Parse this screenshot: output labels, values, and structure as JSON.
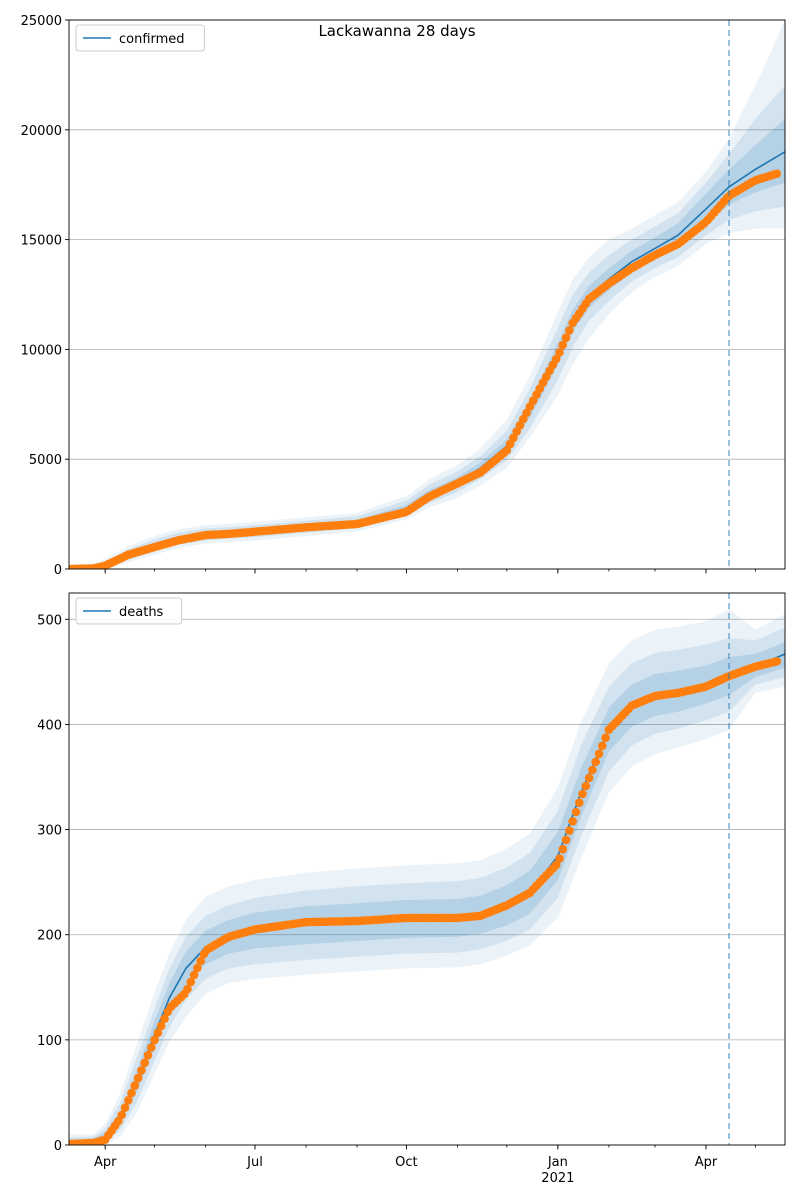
{
  "title": "Lackawanna 28 days",
  "colors": {
    "model_line": "#1f77b4",
    "observed": "#ff7f0e",
    "band": "#1f77b4",
    "grid": "#b0b0b0"
  },
  "chart_data": [
    {
      "type": "line",
      "legend": "confirmed",
      "legend_position": "upper-left",
      "ylim": [
        0,
        25000
      ],
      "yticks": [
        0,
        5000,
        10000,
        15000,
        20000,
        25000
      ],
      "grid": "horizontal",
      "x_domain": [
        "2020-03-10",
        "2021-05-19"
      ],
      "xticks": [
        {
          "date": "2020-04-01",
          "label": "Apr"
        },
        {
          "date": "2020-07-01",
          "label": "Jul"
        },
        {
          "date": "2020-10-01",
          "label": "Oct"
        },
        {
          "date": "2021-01-01",
          "label": "Jan",
          "sublabel": "2021"
        },
        {
          "date": "2021-04-01",
          "label": "Apr"
        }
      ],
      "forecast_start": "2021-04-15",
      "model": {
        "x": [
          "2020-03-10",
          "2020-03-25",
          "2020-04-01",
          "2020-04-15",
          "2020-05-01",
          "2020-05-15",
          "2020-06-01",
          "2020-06-15",
          "2020-07-01",
          "2020-08-01",
          "2020-09-01",
          "2020-09-20",
          "2020-10-01",
          "2020-10-15",
          "2020-11-01",
          "2020-11-15",
          "2020-12-01",
          "2020-12-15",
          "2021-01-01",
          "2021-01-10",
          "2021-01-20",
          "2021-02-01",
          "2021-02-15",
          "2021-03-01",
          "2021-03-15",
          "2021-04-01",
          "2021-04-15",
          "2021-05-01",
          "2021-05-19"
        ],
        "y": [
          0,
          20,
          120,
          650,
          1050,
          1350,
          1550,
          1620,
          1700,
          1900,
          2100,
          2500,
          2750,
          3400,
          3950,
          4600,
          5600,
          7300,
          9800,
          11300,
          12400,
          13200,
          14000,
          14600,
          15200,
          16400,
          17400,
          18200,
          19000
        ],
        "bands": [
          {
            "lower": [
              0,
              0,
              50,
              520,
              900,
              1200,
              1400,
              1480,
              1550,
              1750,
              1950,
              2330,
              2580,
              3200,
              3720,
              4350,
              5300,
              6900,
              9300,
              10800,
              11900,
              12700,
              13500,
              14100,
              14650,
              15700,
              16600,
              17150,
              17600
            ],
            "upper": [
              50,
              80,
              200,
              780,
              1200,
              1500,
              1700,
              1760,
              1850,
              2050,
              2250,
              2670,
              2920,
              3600,
              4180,
              4850,
              5900,
              7700,
              10300,
              11800,
              12900,
              13700,
              14500,
              15100,
              15750,
              17100,
              18200,
              19300,
              20500
            ]
          },
          {
            "lower": [
              0,
              0,
              0,
              420,
              800,
              1100,
              1300,
              1380,
              1450,
              1650,
              1850,
              2200,
              2420,
              3000,
              3500,
              4100,
              4950,
              6400,
              8600,
              10100,
              11300,
              12200,
              13100,
              13700,
              14200,
              15200,
              15900,
              16300,
              16500
            ],
            "upper": [
              100,
              150,
              300,
              900,
              1350,
              1650,
              1850,
              1900,
              2000,
              2200,
              2400,
              2850,
              3120,
              3850,
              4450,
              5150,
              6300,
              8200,
              11000,
              12500,
              13500,
              14300,
              15000,
              15600,
              16200,
              17600,
              18900,
              20500,
              22000
            ]
          },
          {
            "lower": [
              0,
              0,
              0,
              300,
              650,
              950,
              1150,
              1230,
              1300,
              1500,
              1700,
              2050,
              2270,
              2800,
              3250,
              3800,
              4600,
              6000,
              7900,
              9300,
              10500,
              11600,
              12600,
              13300,
              13800,
              14800,
              15300,
              15500,
              15500
            ],
            "upper": [
              150,
              250,
              450,
              1050,
              1500,
              1800,
              2000,
              2050,
              2150,
              2350,
              2550,
              3050,
              3320,
              4100,
              4750,
              5500,
              6800,
              8800,
              11700,
              13200,
              14200,
              15000,
              15500,
              16100,
              16700,
              18100,
              19600,
              22000,
              25000
            ]
          }
        ]
      },
      "observed": {
        "x": [
          "2020-03-10",
          "2020-03-25",
          "2020-04-01",
          "2020-04-15",
          "2020-05-01",
          "2020-05-15",
          "2020-06-01",
          "2020-06-15",
          "2020-07-01",
          "2020-08-01",
          "2020-09-01",
          "2020-09-20",
          "2020-10-01",
          "2020-10-15",
          "2020-11-01",
          "2020-11-15",
          "2020-12-01",
          "2020-12-15",
          "2021-01-01",
          "2021-01-10",
          "2021-01-20",
          "2021-02-01",
          "2021-02-15",
          "2021-03-01",
          "2021-03-15",
          "2021-04-01",
          "2021-04-15",
          "2021-05-01",
          "2021-05-14"
        ],
        "y": [
          0,
          30,
          150,
          650,
          1000,
          1300,
          1550,
          1600,
          1700,
          1900,
          2050,
          2400,
          2600,
          3300,
          3900,
          4400,
          5400,
          7400,
          9700,
          11200,
          12300,
          13000,
          13700,
          14300,
          14800,
          15800,
          17000,
          17700,
          18000
        ]
      }
    },
    {
      "type": "line",
      "legend": "deaths",
      "legend_position": "upper-left",
      "ylim": [
        0,
        525
      ],
      "yticks": [
        0,
        100,
        200,
        300,
        400,
        500
      ],
      "grid": "horizontal",
      "x_domain": [
        "2020-03-10",
        "2021-05-19"
      ],
      "xticks": [
        {
          "date": "2020-04-01",
          "label": "Apr"
        },
        {
          "date": "2020-07-01",
          "label": "Jul"
        },
        {
          "date": "2020-10-01",
          "label": "Oct"
        },
        {
          "date": "2021-01-01",
          "label": "Jan",
          "sublabel": "2021"
        },
        {
          "date": "2021-04-01",
          "label": "Apr"
        }
      ],
      "forecast_start": "2021-04-15",
      "model": {
        "x": [
          "2020-03-10",
          "2020-03-25",
          "2020-04-01",
          "2020-04-10",
          "2020-04-20",
          "2020-05-01",
          "2020-05-10",
          "2020-05-20",
          "2020-06-01",
          "2020-06-15",
          "2020-07-01",
          "2020-08-01",
          "2020-09-01",
          "2020-10-01",
          "2020-11-01",
          "2020-11-15",
          "2020-12-01",
          "2020-12-15",
          "2021-01-01",
          "2021-01-15",
          "2021-02-01",
          "2021-02-15",
          "2021-03-01",
          "2021-03-15",
          "2021-04-01",
          "2021-04-15",
          "2021-05-01",
          "2021-05-19"
        ],
        "y": [
          2,
          3,
          8,
          25,
          60,
          105,
          140,
          168,
          188,
          198,
          204,
          209,
          212,
          215,
          216,
          219,
          228,
          240,
          275,
          335,
          395,
          418,
          428,
          431,
          438,
          446,
          455,
          467
        ],
        "bands": [
          {
            "lower": [
              0,
              1,
              5,
              20,
              50,
              92,
              126,
              152,
              172,
              182,
              187,
              191,
              194,
              197,
              198,
              201,
              209,
              220,
              252,
              312,
              374,
              398,
              408,
              412,
              420,
              428,
              445,
              454
            ],
            "upper": [
              5,
              6,
              12,
              32,
              70,
              118,
              154,
              184,
              204,
              214,
              221,
              227,
              230,
              233,
              234,
              237,
              247,
              261,
              298,
              358,
              416,
              438,
              448,
              451,
              456,
              464,
              467,
              478
            ]
          },
          {
            "lower": [
              0,
              0,
              2,
              14,
              40,
              80,
              112,
              138,
              158,
              168,
              172,
              176,
              179,
              182,
              183,
              186,
              194,
              205,
              235,
              293,
              355,
              380,
              391,
              396,
              404,
              412,
              438,
              445
            ],
            "upper": [
              7,
              8,
              16,
              40,
              82,
              130,
              168,
              198,
              218,
              228,
              235,
              242,
              246,
              249,
              251,
              254,
              264,
              278,
              318,
              380,
              436,
              458,
              468,
              471,
              476,
              482,
              480,
              492
            ]
          },
          {
            "lower": [
              0,
              0,
              0,
              8,
              30,
              68,
              98,
              122,
              144,
              154,
              158,
              162,
              165,
              168,
              169,
              172,
              180,
              190,
              216,
              272,
              335,
              360,
              372,
              378,
              386,
              395,
              430,
              436
            ],
            "upper": [
              10,
              10,
              20,
              48,
              95,
              145,
              182,
              214,
              236,
              246,
              252,
              259,
              263,
              266,
              268,
              271,
              282,
              296,
              340,
              402,
              458,
              480,
              490,
              493,
              498,
              510,
              490,
              505
            ]
          }
        ]
      },
      "observed": {
        "x": [
          "2020-03-10",
          "2020-03-25",
          "2020-04-01",
          "2020-04-10",
          "2020-04-20",
          "2020-05-01",
          "2020-05-10",
          "2020-05-20",
          "2020-06-01",
          "2020-06-15",
          "2020-07-01",
          "2020-08-01",
          "2020-09-01",
          "2020-10-01",
          "2020-11-01",
          "2020-11-15",
          "2020-12-01",
          "2020-12-15",
          "2021-01-01",
          "2021-01-15",
          "2021-02-01",
          "2021-02-15",
          "2021-03-01",
          "2021-03-15",
          "2021-04-01",
          "2021-04-15",
          "2021-05-01",
          "2021-05-14"
        ],
        "y": [
          1,
          2,
          5,
          25,
          60,
          100,
          130,
          145,
          185,
          198,
          205,
          212,
          213,
          216,
          216,
          218,
          228,
          240,
          268,
          330,
          395,
          418,
          427,
          430,
          436,
          446,
          455,
          460
        ]
      }
    }
  ]
}
